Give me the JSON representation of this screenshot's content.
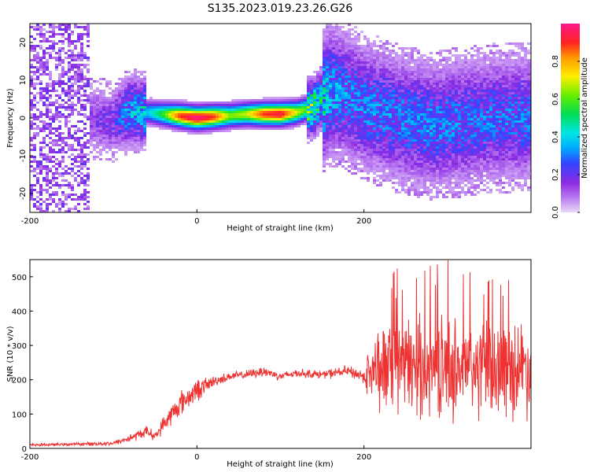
{
  "figure": {
    "title": "S135.2023.019.23.26.G26"
  },
  "colors": {
    "snr_line": "#ee3333",
    "colormap": [
      "#e8d8f8",
      "#b877f0",
      "#8a2be2",
      "#3344ff",
      "#00aaff",
      "#00e5e5",
      "#00dd55",
      "#66ee00",
      "#ffee00",
      "#ff9900",
      "#ff2222",
      "#ff1a8c"
    ]
  },
  "chart_data": [
    {
      "type": "heatmap",
      "title": "",
      "xlabel": "Height of straight line (km)",
      "ylabel": "Frequency (Hz)",
      "xlim": [
        -200,
        400
      ],
      "ylim": [
        -25,
        25
      ],
      "x_ticks": [
        -200,
        0,
        200
      ],
      "y_ticks": [
        -20,
        -10,
        0,
        10,
        20
      ],
      "colorbar": {
        "label": "Normalized spectral amplitude",
        "range": [
          0,
          1
        ],
        "ticks": [
          0.0,
          0.2,
          0.4,
          0.6,
          0.8
        ]
      },
      "ridge": {
        "x": [
          -130,
          -100,
          -80,
          -60,
          -40,
          -20,
          0,
          20,
          40,
          60,
          80,
          100,
          120,
          140,
          150,
          160,
          180,
          200,
          240,
          280,
          320,
          360,
          400
        ],
        "center_freq": [
          0,
          -1,
          2,
          1.5,
          1,
          0.5,
          0,
          0.3,
          0.6,
          1,
          1,
          1,
          1.5,
          3,
          5,
          7,
          6,
          3,
          0,
          -2,
          -1,
          0,
          0
        ],
        "peak_amplitude": [
          0.15,
          0.2,
          0.35,
          0.4,
          0.6,
          0.9,
          1,
          0.9,
          0.65,
          0.7,
          0.9,
          0.95,
          0.7,
          0.55,
          0.45,
          0.35,
          0.3,
          0.3,
          0.3,
          0.3,
          0.28,
          0.28,
          0.28
        ]
      }
    },
    {
      "type": "line",
      "title": "",
      "xlabel": "Height of straight line (km)",
      "ylabel": "SNR (10 * v/v)",
      "xlim": [
        -200,
        400
      ],
      "ylim": [
        0,
        550
      ],
      "x_ticks": [
        -200,
        0,
        200
      ],
      "y_ticks": [
        0,
        100,
        200,
        300,
        400,
        500
      ],
      "series": [
        {
          "x": [
            -200,
            -150,
            -100,
            -80,
            -60,
            -50,
            -40,
            -30,
            -20,
            -10,
            0,
            20,
            40,
            60,
            80,
            100,
            120,
            150,
            180,
            200,
            210,
            250,
            300,
            350,
            400
          ],
          "values": [
            10,
            12,
            15,
            30,
            50,
            35,
            70,
            100,
            130,
            150,
            170,
            195,
            210,
            215,
            225,
            210,
            220,
            215,
            225,
            210,
            230,
            240,
            235,
            230,
            240
          ],
          "spread": [
            5,
            5,
            8,
            15,
            20,
            15,
            30,
            40,
            45,
            40,
            40,
            20,
            15,
            15,
            20,
            15,
            15,
            15,
            20,
            25,
            150,
            170,
            180,
            175,
            170
          ]
        }
      ]
    }
  ]
}
